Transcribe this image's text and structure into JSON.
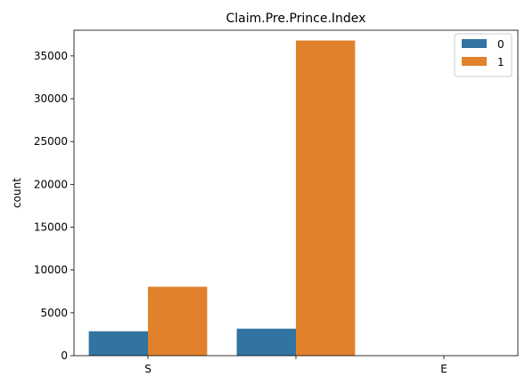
{
  "chart_data": {
    "type": "bar",
    "title": "Claim.Pre.Prince.Index",
    "xlabel": "",
    "ylabel": "count",
    "categories": [
      "S",
      "",
      "E"
    ],
    "series": [
      {
        "name": "0",
        "color": "#3274a1",
        "values": [
          2850,
          3150,
          0
        ]
      },
      {
        "name": "1",
        "color": "#e1812c",
        "values": [
          8050,
          36800,
          0
        ]
      }
    ],
    "ylim": [
      0,
      38000
    ],
    "yticks": [
      0,
      5000,
      10000,
      15000,
      20000,
      25000,
      30000,
      35000
    ],
    "grid": false,
    "legend_position": "upper right"
  }
}
